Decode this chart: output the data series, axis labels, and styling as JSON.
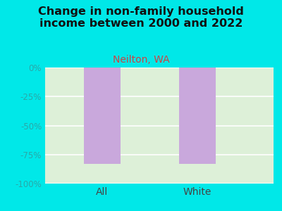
{
  "title": "Change in non-family household\nincome between 2000 and 2022",
  "subtitle": "Neilton, WA",
  "categories": [
    "All",
    "White"
  ],
  "values": [
    -83,
    -83
  ],
  "bar_color": "#c9a8dc",
  "background_color": "#00e8e8",
  "plot_bg_color_left": "#ddf0d8",
  "plot_bg_color_right": "#f5fdf3",
  "title_fontsize": 11.5,
  "subtitle_fontsize": 10,
  "subtitle_color": "#cc4444",
  "ytick_color": "#2aa8a8",
  "xtick_color": "#444444",
  "ylim": [
    -100,
    0
  ],
  "yticks": [
    0,
    -25,
    -50,
    -75,
    -100
  ],
  "ytick_labels": [
    "0%",
    "-25%",
    "-50%",
    "-75%",
    "-100%"
  ],
  "title_color": "#111111",
  "bar_width": 0.38,
  "grid_color": "#ffffff",
  "bar_edge_color": "none"
}
